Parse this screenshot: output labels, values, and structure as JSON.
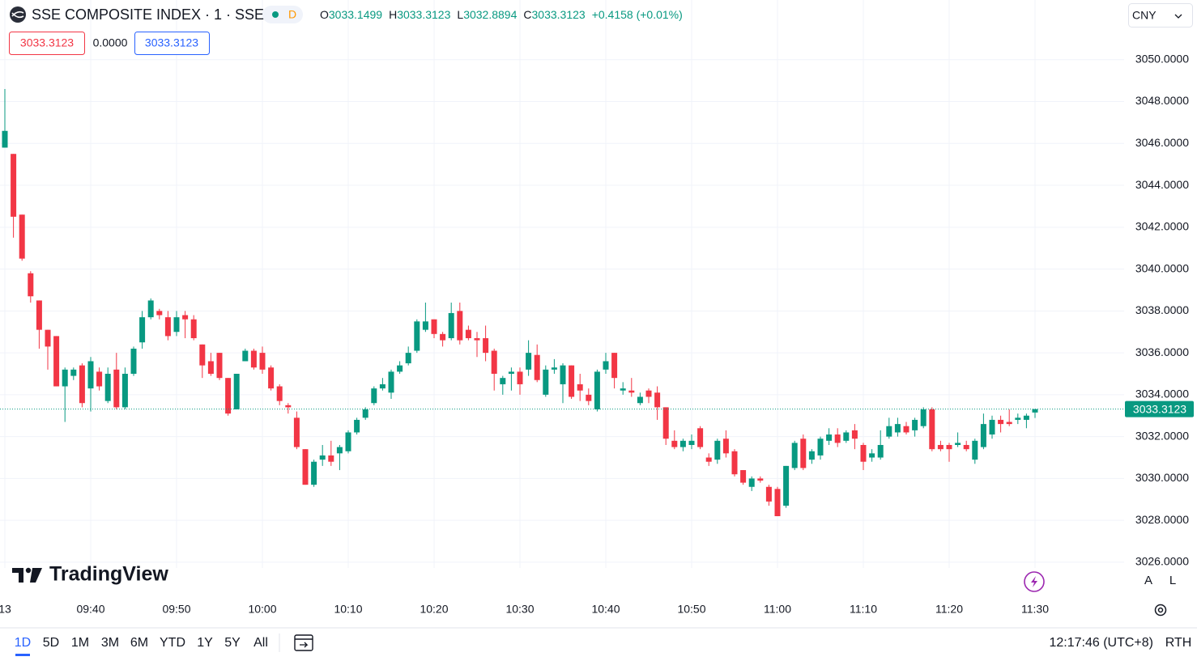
{
  "chart_data": {
    "type": "candlestick",
    "title": "SSE COMPOSITE INDEX · 1 · SSE",
    "categories": [
      "13",
      null,
      null,
      null,
      null,
      null,
      null,
      null,
      null,
      null,
      "09:40",
      null,
      null,
      null,
      null,
      null,
      null,
      null,
      null,
      null,
      "09:50",
      null,
      null,
      null,
      null,
      null,
      null,
      null,
      null,
      null,
      "10:00",
      null,
      null,
      null,
      null,
      null,
      null,
      null,
      null,
      null,
      "10:10",
      null,
      null,
      null,
      null,
      null,
      null,
      null,
      null,
      null,
      "10:20",
      null,
      null,
      null,
      null,
      null,
      null,
      null,
      null,
      null,
      "10:30",
      null,
      null,
      null,
      null,
      null,
      null,
      null,
      null,
      null,
      "10:40",
      null,
      null,
      null,
      null,
      null,
      null,
      null,
      null,
      null,
      "10:50",
      null,
      null,
      null,
      null,
      null,
      null,
      null,
      null,
      null,
      "11:00",
      null,
      null,
      null,
      null,
      null,
      null,
      null,
      null,
      null,
      "11:10",
      null,
      null,
      null,
      null,
      null,
      null,
      null,
      null,
      null,
      "11:20",
      null,
      null,
      null,
      null,
      null,
      null,
      null,
      null,
      null,
      "11:30"
    ],
    "open": [
      3045.8,
      3045.5,
      3042.6,
      3039.8,
      3038.5,
      3037.1,
      3036.8,
      3034.4,
      3034.9,
      3035.4,
      3034.3,
      3035.1,
      3033.7,
      3035.2,
      3033.4,
      3035.0,
      3036.5,
      3037.7,
      3038.0,
      3037.7,
      3037.0,
      3037.8,
      3037.6,
      3036.4,
      3035.6,
      3036.0,
      3034.8,
      3033.3,
      3035.6,
      3036.1,
      3036.0,
      3035.3,
      3034.4,
      3033.5,
      3032.9,
      3031.4,
      3029.7,
      3030.9,
      3031.1,
      3031.2,
      3031.3,
      3032.2,
      3032.9,
      3033.6,
      3034.3,
      3034.1,
      3035.1,
      3035.5,
      3036.1,
      3037.1,
      3037.6,
      3036.9,
      3036.7,
      3038.0,
      3037.1,
      3036.7,
      3036.7,
      3036.1,
      3034.5,
      3035.0,
      3035.1,
      3035.2,
      3035.9,
      3034.0,
      3035.2,
      3034.5,
      3035.4,
      3034.5,
      3034.0,
      3033.3,
      3035.2,
      3036.0,
      3034.2,
      3034.2,
      3033.6,
      3034.2,
      3034.1,
      3033.4,
      3031.8,
      3031.5,
      3031.6,
      3032.4,
      3031.0,
      3030.9,
      3031.9,
      3031.3,
      3030.4,
      3029.6,
      3030.0,
      3029.6,
      3029.5,
      3028.7,
      3030.5,
      3031.9,
      3030.9,
      3031.1,
      3031.8,
      3032.1,
      3031.8,
      3032.3,
      3031.6,
      3031.0,
      3031.0,
      3032.0,
      3032.2,
      3032.5,
      3032.3,
      3032.5,
      3033.3,
      3031.6,
      3031.6,
      3031.6,
      3031.6,
      3030.9,
      3031.5,
      3032.1,
      3032.8,
      3032.7,
      3032.8,
      3032.8,
      3033.1499
    ],
    "high": [
      3048.6,
      3045.5,
      3042.6,
      3039.9,
      3038.5,
      3037.1,
      3036.8,
      3035.3,
      3035.3,
      3035.5,
      3035.8,
      3035.3,
      3035.3,
      3036.0,
      3035.3,
      3036.3,
      3038.0,
      3038.6,
      3038.1,
      3038.0,
      3038.0,
      3038.0,
      3037.8,
      3036.4,
      3036.0,
      3036.0,
      3034.8,
      3035.0,
      3036.2,
      3036.2,
      3036.3,
      3035.4,
      3034.5,
      3033.6,
      3033.2,
      3031.4,
      3030.9,
      3031.6,
      3031.8,
      3031.6,
      3032.3,
      3032.9,
      3033.4,
      3034.4,
      3034.8,
      3035.2,
      3035.6,
      3036.3,
      3037.6,
      3038.4,
      3037.6,
      3037.0,
      3038.4,
      3038.4,
      3037.3,
      3037.0,
      3037.3,
      3036.2,
      3034.9,
      3035.3,
      3035.3,
      3036.6,
      3036.4,
      3035.4,
      3035.7,
      3035.5,
      3035.4,
      3035.0,
      3034.3,
      3035.2,
      3036.0,
      3036.0,
      3034.6,
      3034.8,
      3034.1,
      3034.3,
      3034.4,
      3033.4,
      3032.3,
      3031.9,
      3032.1,
      3032.5,
      3031.2,
      3031.9,
      3032.3,
      3031.4,
      3030.4,
      3030.1,
      3030.1,
      3029.7,
      3029.6,
      3030.6,
      3031.8,
      3032.1,
      3031.4,
      3032.0,
      3032.4,
      3032.4,
      3032.3,
      3032.6,
      3031.7,
      3031.4,
      3032.3,
      3032.9,
      3032.9,
      3032.7,
      3032.9,
      3033.4,
      3033.4,
      3031.8,
      3031.7,
      3032.2,
      3031.8,
      3031.9,
      3033.1,
      3033.0,
      3033.0,
      3033.3,
      3033.1,
      3033.1,
      3033.3123
    ],
    "low": [
      3045.8,
      3041.5,
      3040.4,
      3038.4,
      3036.2,
      3035.2,
      3034.4,
      3032.7,
      3034.7,
      3033.4,
      3033.2,
      3034.2,
      3033.6,
      3033.3,
      3033.3,
      3034.9,
      3036.2,
      3037.6,
      3037.6,
      3036.6,
      3036.8,
      3036.7,
      3036.6,
      3034.8,
      3034.9,
      3034.7,
      3033.0,
      3033.3,
      3035.6,
      3035.2,
      3035.0,
      3034.2,
      3033.5,
      3033.1,
      3031.4,
      3029.7,
      3029.6,
      3030.6,
      3030.6,
      3030.4,
      3031.2,
      3032.1,
      3032.8,
      3033.5,
      3034.2,
      3033.8,
      3035.0,
      3035.4,
      3036.0,
      3037.0,
      3036.7,
      3036.3,
      3036.6,
      3036.4,
      3036.6,
      3035.8,
      3035.6,
      3034.2,
      3034.0,
      3034.2,
      3034.0,
      3034.9,
      3034.6,
      3033.9,
      3035.0,
      3033.6,
      3033.8,
      3033.7,
      3033.5,
      3033.2,
      3035.0,
      3034.3,
      3034.0,
      3033.9,
      3033.5,
      3033.6,
      3032.8,
      3031.6,
      3031.4,
      3031.3,
      3031.4,
      3031.4,
      3030.6,
      3030.7,
      3031.0,
      3030.1,
      3029.7,
      3029.4,
      3029.8,
      3028.7,
      3028.2,
      3028.6,
      3030.4,
      3030.4,
      3030.7,
      3030.9,
      3031.6,
      3031.5,
      3031.7,
      3031.4,
      3030.4,
      3030.8,
      3030.9,
      3031.9,
      3032.0,
      3032.1,
      3032.0,
      3032.4,
      3031.3,
      3031.3,
      3030.8,
      3031.5,
      3031.3,
      3030.7,
      3031.4,
      3031.9,
      3032.2,
      3032.5,
      3032.6,
      3032.4,
      3032.8894
    ],
    "close": [
      3046.6,
      3042.5,
      3040.5,
      3038.7,
      3037.1,
      3036.3,
      3034.4,
      3035.2,
      3035.2,
      3033.6,
      3035.6,
      3034.4,
      3035.0,
      3033.4,
      3035.0,
      3036.2,
      3037.7,
      3038.5,
      3037.8,
      3036.8,
      3037.7,
      3037.6,
      3036.7,
      3035.4,
      3035.0,
      3034.8,
      3033.1,
      3035.0,
      3036.1,
      3035.3,
      3035.2,
      3034.3,
      3033.7,
      3033.4,
      3031.5,
      3029.7,
      3030.8,
      3031.1,
      3030.8,
      3031.5,
      3032.2,
      3032.8,
      3033.3,
      3034.3,
      3034.5,
      3035.1,
      3035.4,
      3036.0,
      3037.5,
      3037.5,
      3036.9,
      3036.6,
      3037.9,
      3036.6,
      3036.7,
      3036.6,
      3036.0,
      3035.0,
      3034.8,
      3035.1,
      3034.5,
      3036.0,
      3034.7,
      3035.2,
      3035.3,
      3035.4,
      3033.9,
      3034.2,
      3033.7,
      3035.1,
      3035.6,
      3034.8,
      3034.3,
      3034.1,
      3033.9,
      3033.9,
      3033.4,
      3031.9,
      3031.5,
      3031.8,
      3031.8,
      3031.5,
      3030.8,
      3031.8,
      3031.2,
      3030.2,
      3029.8,
      3030.0,
      3029.9,
      3028.9,
      3028.2,
      3030.6,
      3031.7,
      3030.5,
      3031.3,
      3031.9,
      3032.1,
      3031.7,
      3032.2,
      3031.9,
      3030.8,
      3031.2,
      3031.6,
      3032.5,
      3032.6,
      3032.2,
      3032.8,
      3033.3,
      3031.4,
      3031.4,
      3031.4,
      3031.7,
      3031.4,
      3031.8,
      3032.6,
      3032.8,
      3032.6,
      3032.6,
      3032.9,
      3033.0,
      3033.3123
    ],
    "up_color": "#089981",
    "down_color": "#f23645",
    "ylim": [
      3025.7,
      3052.85
    ],
    "yticks": [
      {
        "value": 3026,
        "label": "3026.0000"
      },
      {
        "value": 3028,
        "label": "3028.0000"
      },
      {
        "value": 3030,
        "label": "3030.0000"
      },
      {
        "value": 3032,
        "label": "3032.0000"
      },
      {
        "value": 3034,
        "label": "3034.0000"
      },
      {
        "value": 3036,
        "label": "3036.0000"
      },
      {
        "value": 3038,
        "label": "3038.0000"
      },
      {
        "value": 3040,
        "label": "3040.0000"
      },
      {
        "value": 3042,
        "label": "3042.0000"
      },
      {
        "value": 3044,
        "label": "3044.0000"
      },
      {
        "value": 3046,
        "label": "3046.0000"
      },
      {
        "value": 3048,
        "label": "3048.0000"
      },
      {
        "value": 3050,
        "label": "3050.0000"
      }
    ],
    "grid": true
  },
  "ui": {
    "interval_badge": "D",
    "ohlc": [
      {
        "label": "O",
        "value": "3033.1499"
      },
      {
        "label": "H",
        "value": "3033.3123"
      },
      {
        "label": "L",
        "value": "3032.8894"
      },
      {
        "label": "C",
        "value": "3033.3123"
      }
    ],
    "change": "+0.4158 (+0.01%)",
    "sell_box": "3033.3123",
    "spread": "0.0000",
    "buy_box": "3033.3123",
    "currency": "CNY",
    "watermark": "TradingView",
    "scale_buttons": [
      "A",
      "L"
    ],
    "ranges": [
      "1D",
      "5D",
      "1M",
      "3M",
      "6M",
      "YTD",
      "1Y",
      "5Y",
      "All"
    ],
    "clock": "12:17:46 (UTC+8)",
    "session": "RTH"
  }
}
